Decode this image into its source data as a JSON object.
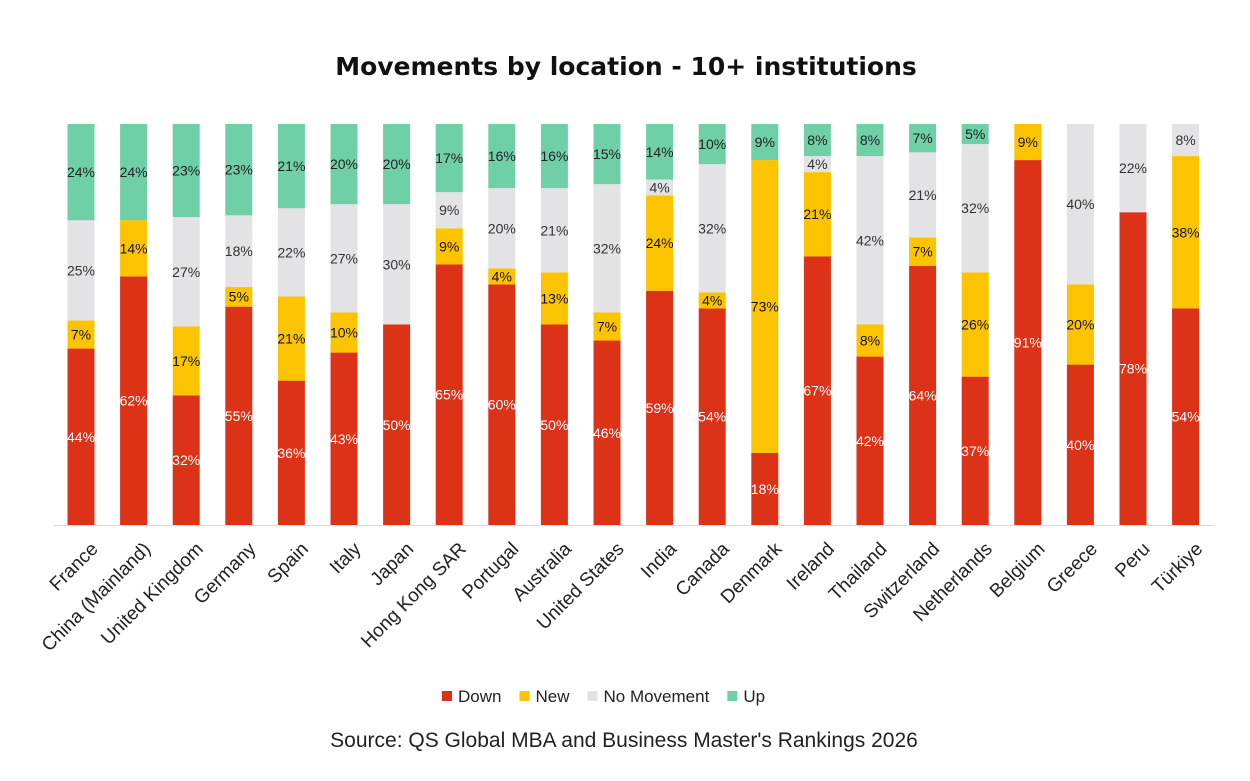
{
  "chart_data": {
    "type": "bar",
    "stacked": true,
    "percent_stacked": true,
    "title": "Movements by location - 10+ institutions",
    "source": "Source: QS Global MBA and Business Master's Rankings 2026",
    "legend_position": "bottom",
    "grid": false,
    "ylim": [
      0,
      100
    ],
    "categories": [
      "France",
      "China (Mainland)",
      "United Kingdom",
      "Germany",
      "Spain",
      "Italy",
      "Japan",
      "Hong Kong SAR",
      "Portugal",
      "Australia",
      "United States",
      "India",
      "Canada",
      "Denmark",
      "Ireland",
      "Thailand",
      "Switzerland",
      "Netherlands",
      "Belgium",
      "Greece",
      "Peru",
      "Türkiye"
    ],
    "series": [
      {
        "name": "Down",
        "color": "#dc3318",
        "label_color": "#ffffff",
        "values": [
          44,
          62,
          32,
          55,
          36,
          43,
          50,
          65,
          60,
          50,
          46,
          59,
          54,
          18,
          67,
          42,
          64,
          37,
          91,
          40,
          78,
          54
        ]
      },
      {
        "name": "New",
        "color": "#fcc400",
        "label_color": "#111111",
        "values": [
          7,
          14,
          17,
          5,
          21,
          10,
          0,
          9,
          4,
          13,
          7,
          24,
          4,
          73,
          21,
          8,
          7,
          26,
          9,
          20,
          0,
          38
        ]
      },
      {
        "name": "No Movement",
        "color": "#e3e2e4",
        "label_color": "#333333",
        "values": [
          25,
          0,
          27,
          18,
          22,
          27,
          30,
          9,
          20,
          21,
          32,
          4,
          32,
          0,
          4,
          42,
          21,
          32,
          0,
          40,
          22,
          8
        ]
      },
      {
        "name": "Up",
        "color": "#6fd0a8",
        "label_color": "#222222",
        "values": [
          24,
          24,
          23,
          23,
          21,
          20,
          20,
          17,
          16,
          16,
          15,
          14,
          10,
          9,
          8,
          8,
          7,
          5,
          0,
          0,
          0,
          0
        ]
      }
    ]
  }
}
